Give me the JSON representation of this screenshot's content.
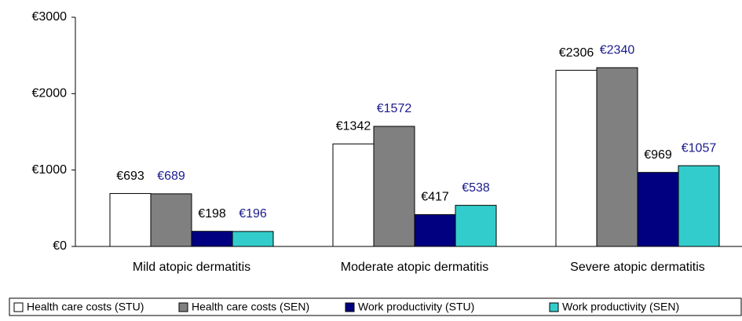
{
  "chart_data": {
    "type": "bar",
    "categories": [
      "Mild atopic dermatitis",
      "Moderate atopic dermatitis",
      "Severe atopic dermatitis"
    ],
    "series": [
      {
        "name": "Health care costs (STU)",
        "color": "#ffffff",
        "label_color": "#000000",
        "values": [
          693,
          1342,
          2306
        ],
        "value_labels": [
          "€693",
          "€1342",
          "€2306"
        ]
      },
      {
        "name": "Health care costs (SEN)",
        "color": "#808080",
        "label_color": "#1a1a8c",
        "values": [
          689,
          1572,
          2340
        ],
        "value_labels": [
          "€689",
          "€1572",
          "€2340"
        ]
      },
      {
        "name": "Work productivity (STU)",
        "color": "#000080",
        "label_color": "#000000",
        "values": [
          198,
          417,
          969
        ],
        "value_labels": [
          "€198",
          "€417",
          "€969"
        ]
      },
      {
        "name": "Work productivity (SEN)",
        "color": "#33cccc",
        "label_color": "#1a1a8c",
        "values": [
          196,
          538,
          1057
        ],
        "value_labels": [
          "€196",
          "€538",
          "€1057"
        ]
      }
    ],
    "ylim": [
      0,
      3000
    ],
    "yticks": [
      {
        "value": 0,
        "label": "€0"
      },
      {
        "value": 1000,
        "label": "€1000"
      },
      {
        "value": 2000,
        "label": "€2000"
      },
      {
        "value": 3000,
        "label": "€3000"
      }
    ],
    "grid": false,
    "legend": "bottom"
  }
}
